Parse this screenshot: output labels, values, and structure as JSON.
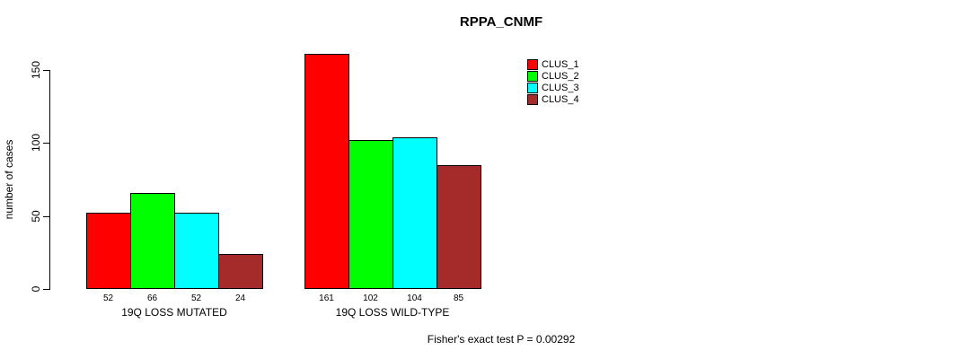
{
  "chart_data": {
    "type": "bar",
    "title": "RPPA_CNMF",
    "ylabel": "number of cases",
    "xlabel": "",
    "yticks": [
      0,
      50,
      100,
      150
    ],
    "ylim": [
      0,
      165
    ],
    "grid": false,
    "legend_position": "top-right",
    "categories": [
      "19Q LOSS MUTATED",
      "19Q LOSS WILD-TYPE"
    ],
    "series": [
      {
        "name": "CLUS_1",
        "color": "#FF0000",
        "values": [
          52,
          161
        ]
      },
      {
        "name": "CLUS_2",
        "color": "#00FF00",
        "values": [
          66,
          102
        ]
      },
      {
        "name": "CLUS_3",
        "color": "#00FFFF",
        "values": [
          52,
          104
        ]
      },
      {
        "name": "CLUS_4",
        "color": "#A52A2A",
        "values": [
          24,
          85
        ]
      }
    ],
    "bar_value_labels": {
      "19Q LOSS MUTATED": [
        52,
        66,
        52,
        24
      ],
      "19Q LOSS WILD-TYPE": [
        161,
        102,
        104,
        85
      ]
    },
    "annotation": "Fisher's exact test P = 0.00292"
  }
}
